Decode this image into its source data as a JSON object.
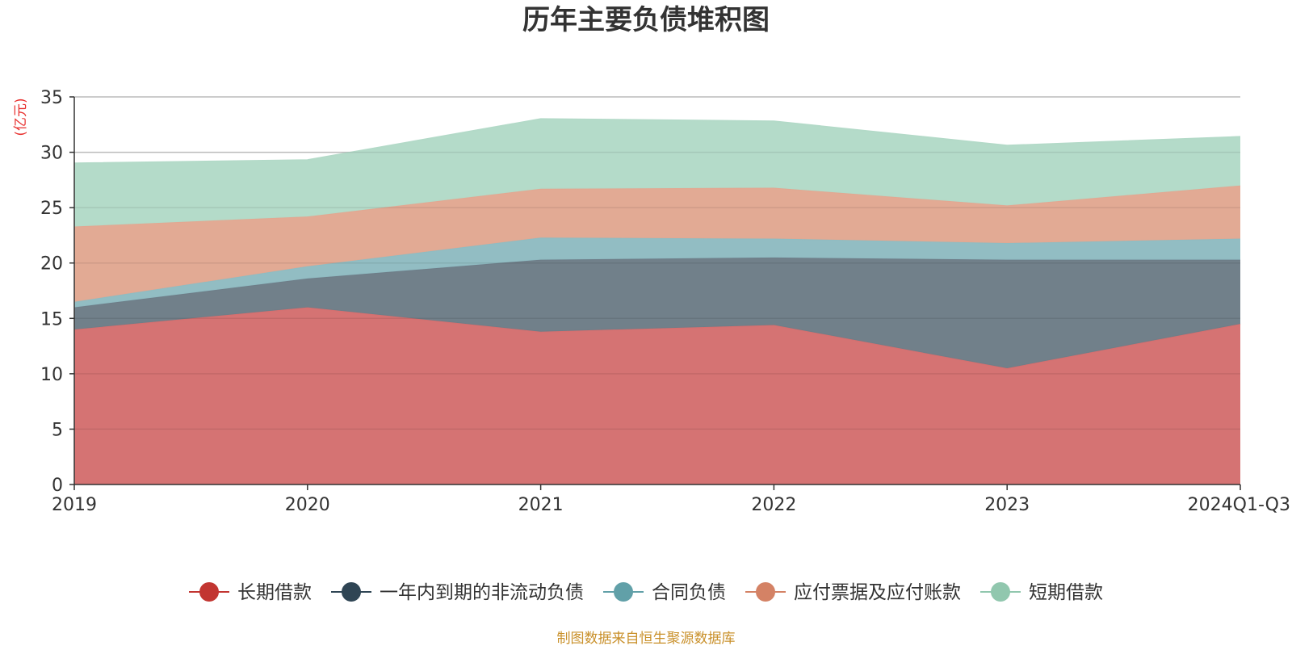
{
  "colors": {
    "text": "#333333",
    "unit": "#e8312f",
    "source": "#c9902a",
    "grid": "#cccccc",
    "axis": "#333333"
  },
  "chart_data": {
    "type": "area",
    "stacked": true,
    "title": "历年主要负债堆积图",
    "ylabel": "(亿元)",
    "xlabel": "",
    "ylim": [
      0,
      35
    ],
    "yticks": [
      0,
      5,
      10,
      15,
      20,
      25,
      30,
      35
    ],
    "categories": [
      "2019",
      "2020",
      "2021",
      "2022",
      "2023",
      "2024Q1-Q3"
    ],
    "grid": true,
    "legend_position": "bottom",
    "series": [
      {
        "name": "长期借款",
        "color": "#c23531",
        "area_color": "#d47070",
        "values": [
          14.0,
          16.0,
          13.8,
          14.4,
          10.5,
          14.5
        ]
      },
      {
        "name": "一年内到期的非流动负债",
        "color": "#2f4554",
        "area_color": "#6e7d88",
        "values": [
          2.0,
          2.6,
          6.5,
          6.1,
          9.8,
          5.8
        ]
      },
      {
        "name": "合同负债",
        "color": "#61a0a8",
        "area_color": "#90bcc2",
        "values": [
          0.5,
          1.1,
          2.0,
          1.7,
          1.5,
          1.9
        ]
      },
      {
        "name": "应付票据及应付账款",
        "color": "#d48265",
        "area_color": "#e1a892",
        "values": [
          6.8,
          4.5,
          4.4,
          4.6,
          3.4,
          4.8
        ]
      },
      {
        "name": "短期借款",
        "color": "#91c7ae",
        "area_color": "#b3dac8",
        "values": [
          5.7,
          5.1,
          6.3,
          6.0,
          5.4,
          4.4
        ]
      }
    ]
  },
  "source_text": "制图数据来自恒生聚源数据库"
}
